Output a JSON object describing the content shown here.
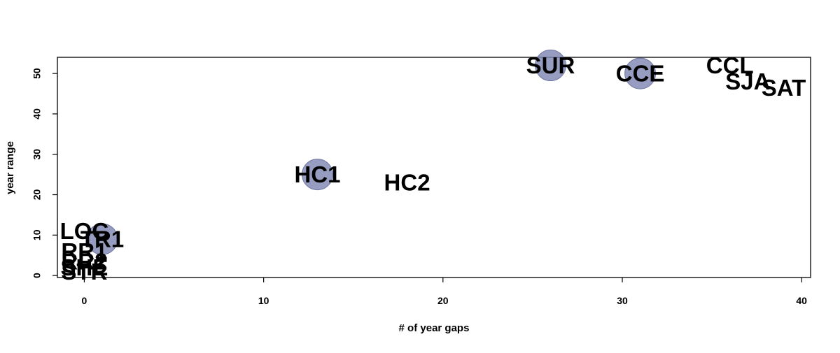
{
  "chart_data": {
    "type": "scatter",
    "title": "",
    "xlabel": "# of year gaps",
    "ylabel": "year range",
    "xlim": [
      -1.5,
      40.5
    ],
    "ylim": [
      -0.5,
      54
    ],
    "x_ticks": [
      0,
      10,
      20,
      30,
      40
    ],
    "y_ticks": [
      0,
      10,
      20,
      30,
      40,
      50
    ],
    "grid": false,
    "bubble_color": "#8088b3",
    "points": [
      {
        "label": "LOC",
        "x": 0,
        "y": 11,
        "bubble": false
      },
      {
        "label": "TR1",
        "x": 1,
        "y": 9,
        "bubble": true
      },
      {
        "label": "RR1",
        "x": 0,
        "y": 6,
        "bubble": false
      },
      {
        "label": "RR2",
        "x": 0,
        "y": 3.5,
        "bubble": false
      },
      {
        "label": "SHE",
        "x": 0,
        "y": 2,
        "bubble": false
      },
      {
        "label": "STR",
        "x": 0,
        "y": 1,
        "bubble": false
      },
      {
        "label": "HC1",
        "x": 13,
        "y": 25,
        "bubble": true
      },
      {
        "label": "HC2",
        "x": 18,
        "y": 23,
        "bubble": false
      },
      {
        "label": "SUR",
        "x": 26,
        "y": 52,
        "bubble": true
      },
      {
        "label": "CCE",
        "x": 31,
        "y": 50,
        "bubble": true
      },
      {
        "label": "CCL",
        "x": 36,
        "y": 52,
        "bubble": false
      },
      {
        "label": "SJA",
        "x": 37,
        "y": 48,
        "bubble": false
      },
      {
        "label": "SAT",
        "x": 39,
        "y": 46.5,
        "bubble": false
      }
    ]
  }
}
